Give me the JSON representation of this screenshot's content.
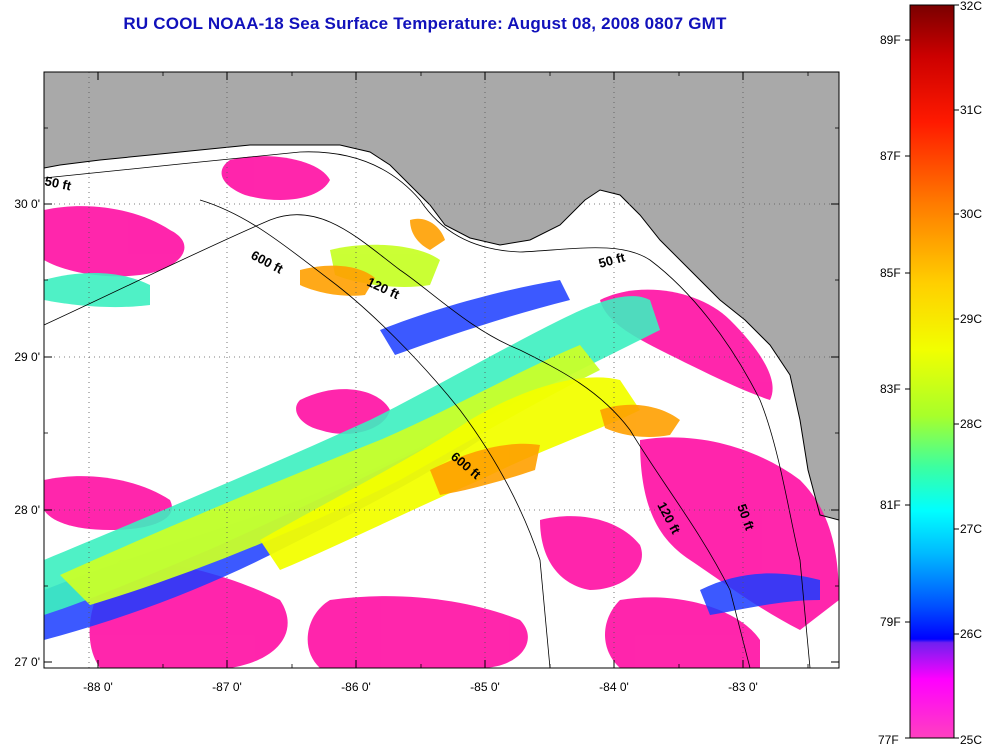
{
  "title": "RU COOL  NOAA-18  Sea Surface Temperature:  August 08, 2008 0807 GMT",
  "map": {
    "lon_ticks": [
      "-88 0'",
      "-87 0'",
      "-86 0'",
      "-85 0'",
      "-84 0'",
      "-83 0'"
    ],
    "lat_ticks": [
      "30 0'",
      "29 0'",
      "28 0'",
      "27 0'"
    ],
    "land_color": "#a9a9a9",
    "cloud_color": "#ffffff",
    "depth_contours": [
      {
        "label": "50 ft"
      },
      {
        "label": "600 ft"
      },
      {
        "label": "120 ft"
      },
      {
        "label": "50 ft"
      },
      {
        "label": "600 ft"
      },
      {
        "label": "120 ft"
      },
      {
        "label": "50 ft"
      }
    ]
  },
  "colorbar": {
    "fahrenheit_labels": [
      "89F",
      "87F",
      "85F",
      "83F",
      "81F",
      "79F",
      "77F"
    ],
    "celsius_labels": [
      "32C",
      "31C",
      "30C",
      "29C",
      "28C",
      "27C",
      "26C",
      "25C"
    ],
    "gradient_colors": [
      "#7a0000",
      "#cc0000",
      "#ff1a00",
      "#ff7a00",
      "#ffcf00",
      "#f2ff00",
      "#a8ff2a",
      "#3cffa0",
      "#00ffff",
      "#00b8ff",
      "#0050ff",
      "#0000ff",
      "#a020f0",
      "#ff00ff",
      "#ff40c0"
    ]
  }
}
